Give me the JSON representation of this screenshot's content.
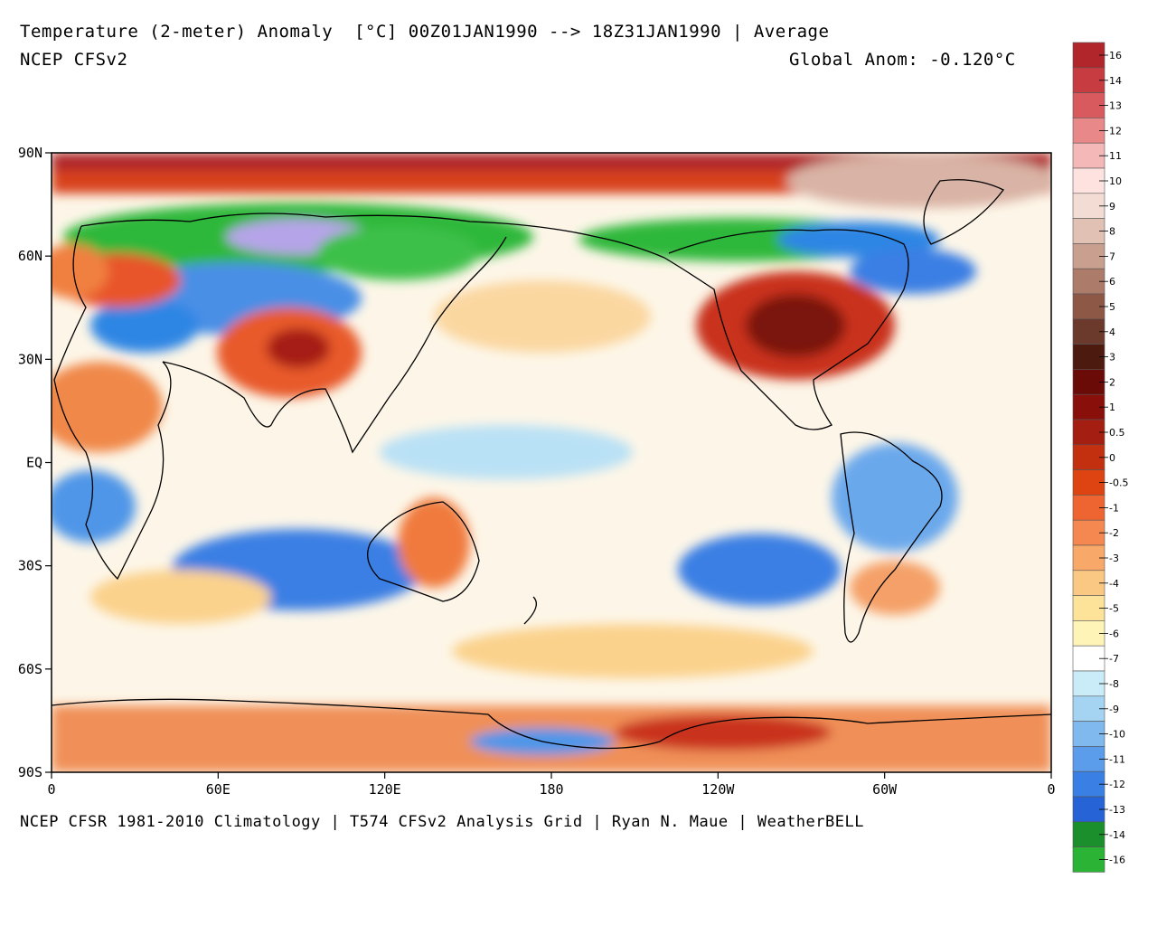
{
  "header": {
    "title": "Temperature (2-meter) Anomaly  [°C] 00Z01JAN1990 --> 18Z31JAN1990 | Average",
    "model": "NCEP CFSv2",
    "global_anom": "Global Anom: -0.120°C"
  },
  "footer": "NCEP CFSR 1981-2010 Climatology | T574 CFSv2 Analysis Grid | Ryan N. Maue | WeatherBELL",
  "axes": {
    "lat_labels": [
      "90N",
      "60N",
      "30N",
      "EQ",
      "30S",
      "60S",
      "90S"
    ],
    "lon_labels": [
      "0",
      "60E",
      "120E",
      "180",
      "120W",
      "60W",
      "0"
    ]
  },
  "legend": {
    "labels": [
      "16",
      "14",
      "13",
      "12",
      "11",
      "10",
      "9",
      "8",
      "7",
      "6",
      "5",
      "4",
      "3",
      "2",
      "1",
      "0.5",
      "0",
      "-0.5",
      "-1",
      "-2",
      "-3",
      "-4",
      "-5",
      "-6",
      "-7",
      "-8",
      "-9",
      "-10",
      "-11",
      "-12",
      "-13",
      "-14",
      "-16"
    ],
    "colors": [
      "#b0262b",
      "#c63c40",
      "#d85a5e",
      "#e88888",
      "#f5b8b8",
      "#fde2e0",
      "#f2dcd3",
      "#e1c1b4",
      "#c9a08f",
      "#ad7b6a",
      "#8e5847",
      "#6b3a2c",
      "#4d1a10",
      "#6b0b08",
      "#890f0a",
      "#a51e12",
      "#c2300f",
      "#de4412",
      "#ee6531",
      "#f58850",
      "#f8a868",
      "#fbc884",
      "#fde39a",
      "#fff4b8",
      "#ffffff",
      "#c9ecf8",
      "#a5d4f3",
      "#80b9ee",
      "#5c9deb",
      "#3a7fe4",
      "#2663d6",
      "#1a8f2b",
      "#2ab335"
    ]
  }
}
